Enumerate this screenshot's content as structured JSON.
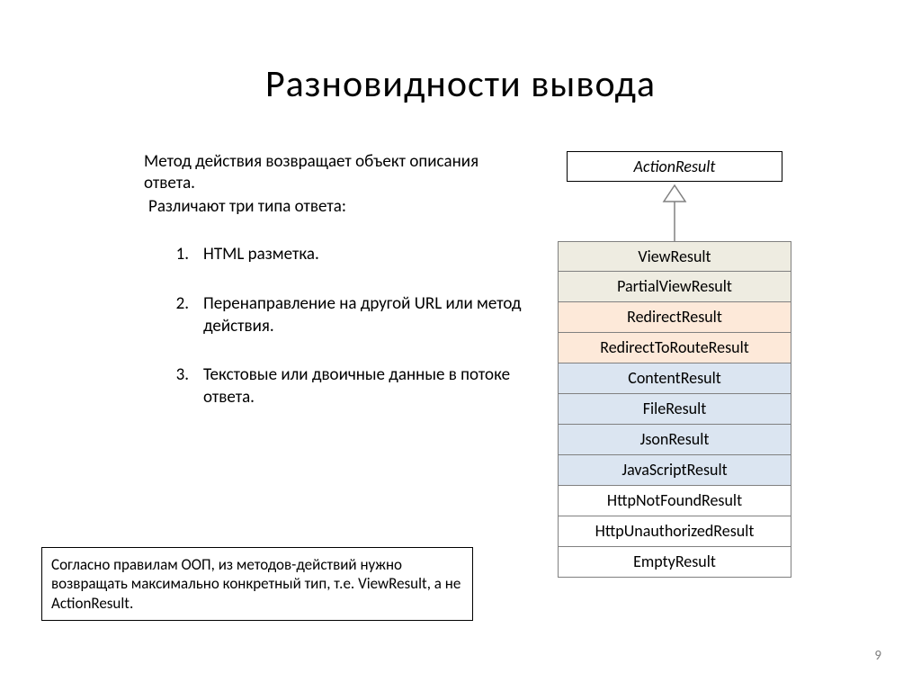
{
  "title": "Разновидности  вывода",
  "intro1": "Метод действия возвращает объект описания ответа.",
  "intro2": "Различают три типа ответа:",
  "list": [
    {
      "num": "1.",
      "text": "HTML разметка."
    },
    {
      "num": "2.",
      "text": "Перенаправление на другой URL или метод действия."
    },
    {
      "num": "3.",
      "text": "Текстовые или двоичные данные в потоке ответа."
    }
  ],
  "note": "Согласно правилам ООП, из методов-действий нужно возвращать максимально конкретный тип, т.е. ViewResult, а не ActionResult.",
  "pageNumber": "9",
  "diagram": {
    "base": "ActionResult",
    "arrow": {
      "stroke": "#808080",
      "fill": "#ffffff"
    },
    "rows": [
      {
        "label": "ViewResult",
        "bg": "#eeece1"
      },
      {
        "label": "PartialViewResult",
        "bg": "#eeece1"
      },
      {
        "label": "RedirectResult",
        "bg": "#fde9d9"
      },
      {
        "label": "RedirectToRouteResult",
        "bg": "#fde9d9"
      },
      {
        "label": "ContentResult",
        "bg": "#dbe5f1"
      },
      {
        "label": "FileResult",
        "bg": "#dbe5f1"
      },
      {
        "label": "JsonResult",
        "bg": "#dbe5f1"
      },
      {
        "label": "JavaScriptResult",
        "bg": "#dbe5f1"
      },
      {
        "label": "HttpNotFoundResult",
        "bg": "#ffffff"
      },
      {
        "label": "HttpUnauthorizedResult",
        "bg": "#ffffff"
      },
      {
        "label": "EmptyResult",
        "bg": "#ffffff"
      }
    ]
  }
}
